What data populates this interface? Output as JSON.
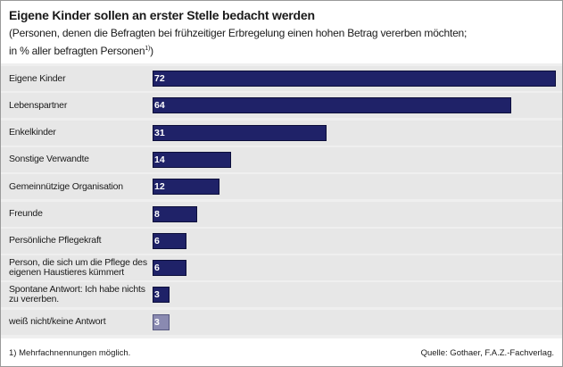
{
  "chart_data": {
    "type": "bar",
    "orientation": "horizontal",
    "title": "Eigene Kinder sollen an erster Stelle bedacht werden",
    "subtitle_line1": "(Personen, denen die Befragten bei frühzeitiger Erbregelung einen hohen Betrag vererben möchten;",
    "subtitle_line2": "in % aller befragten Personen",
    "subtitle_sup": "1)",
    "subtitle_end": ")",
    "categories": [
      "Eigene Kinder",
      "Lebenspartner",
      "Enkelkinder",
      "Sonstige Verwandte",
      "Gemeinnützige Organisation",
      "Freunde",
      "Persönliche Pflegekraft",
      "Person, die sich um die Pflege des eigenen Haustieres kümmert",
      "Spontane Antwort: Ich habe nichts zu vererben.",
      "weiß nicht/keine Antwort"
    ],
    "values": [
      72,
      64,
      31,
      14,
      12,
      8,
      6,
      6,
      3,
      3
    ],
    "xlim": [
      0,
      72
    ],
    "bar_color": "#1f2268",
    "last_bar_color": "#8a8ab1",
    "grid": false
  },
  "footnote": "1)  Mehrfachnennungen möglich.",
  "source": "Quelle: Gothaer, F.A.Z.-Fachverlag."
}
